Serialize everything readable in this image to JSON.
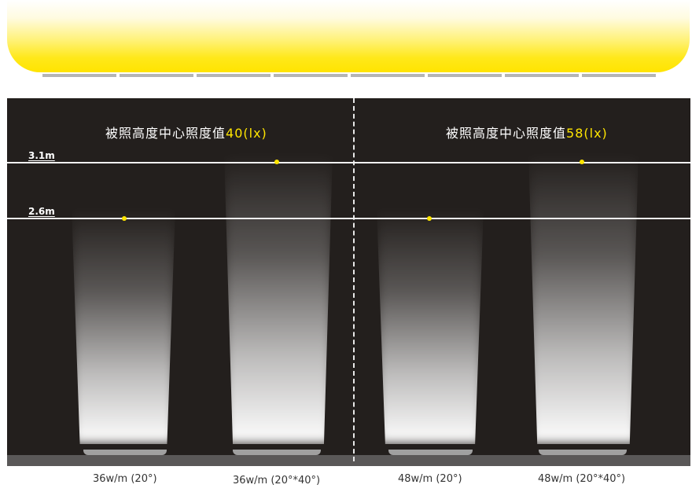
{
  "headers": {
    "left": {
      "text": "被照高度中心照度值",
      "value": "40(lx)"
    },
    "right": {
      "text": "被照高度中心照度值",
      "value": "58(lx)"
    }
  },
  "heights": {
    "high": "3.1m",
    "low": "2.6m"
  },
  "captions": [
    "36w/m (20°)",
    "36w/m (20°*40°)",
    "48w/m (20°)",
    "48w/m (20°*40°)"
  ],
  "colors": {
    "accent": "#ffe500",
    "panel": "#231f1d",
    "floor": "#5a5858"
  }
}
